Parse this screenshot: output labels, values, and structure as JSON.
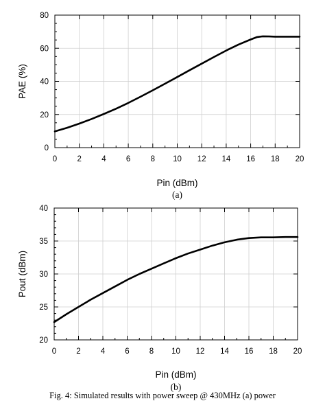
{
  "chart_data": [
    {
      "type": "line",
      "sublabel": "(a)",
      "xlabel": "Pin (dBm)",
      "ylabel": "PAE (%)",
      "xlim": [
        0,
        20
      ],
      "ylim": [
        0,
        80
      ],
      "xticks": [
        0,
        2,
        4,
        6,
        8,
        10,
        12,
        14,
        16,
        18,
        20
      ],
      "yticks": [
        0,
        20,
        40,
        60,
        80
      ],
      "grid": true,
      "series": [
        {
          "x": [
            0,
            1,
            2,
            3,
            4,
            5,
            6,
            7,
            8,
            9,
            10,
            11,
            12,
            13,
            14,
            15,
            16,
            16.5,
            17,
            17.5,
            18,
            19,
            20
          ],
          "y": [
            9.8,
            12,
            14.5,
            17.3,
            20.3,
            23.5,
            27,
            30.7,
            34.6,
            38.6,
            42.6,
            46.7,
            50.7,
            54.7,
            58.6,
            62.2,
            65.3,
            66.7,
            67.2,
            67.1,
            67,
            67,
            67
          ]
        }
      ]
    },
    {
      "type": "line",
      "sublabel": "(b)",
      "xlabel": "Pin (dBm)",
      "ylabel": "Pout (dBm)",
      "xlim": [
        0,
        20
      ],
      "ylim": [
        20,
        40
      ],
      "xticks": [
        0,
        2,
        4,
        6,
        8,
        10,
        12,
        14,
        16,
        18,
        20
      ],
      "yticks": [
        20,
        25,
        30,
        35,
        40
      ],
      "grid": true,
      "series": [
        {
          "x": [
            0,
            1,
            2,
            3,
            4,
            5,
            6,
            7,
            8,
            9,
            10,
            11,
            12,
            13,
            14,
            15,
            16,
            17,
            18,
            19,
            20
          ],
          "y": [
            22.7,
            23.9,
            25.0,
            26.1,
            27.1,
            28.1,
            29.1,
            30.0,
            30.8,
            31.6,
            32.4,
            33.1,
            33.7,
            34.3,
            34.8,
            35.2,
            35.45,
            35.55,
            35.55,
            35.6,
            35.6
          ]
        }
      ]
    }
  ],
  "caption": "Fig. 4: Simulated results with power sweep @ 430MHz (a) power"
}
